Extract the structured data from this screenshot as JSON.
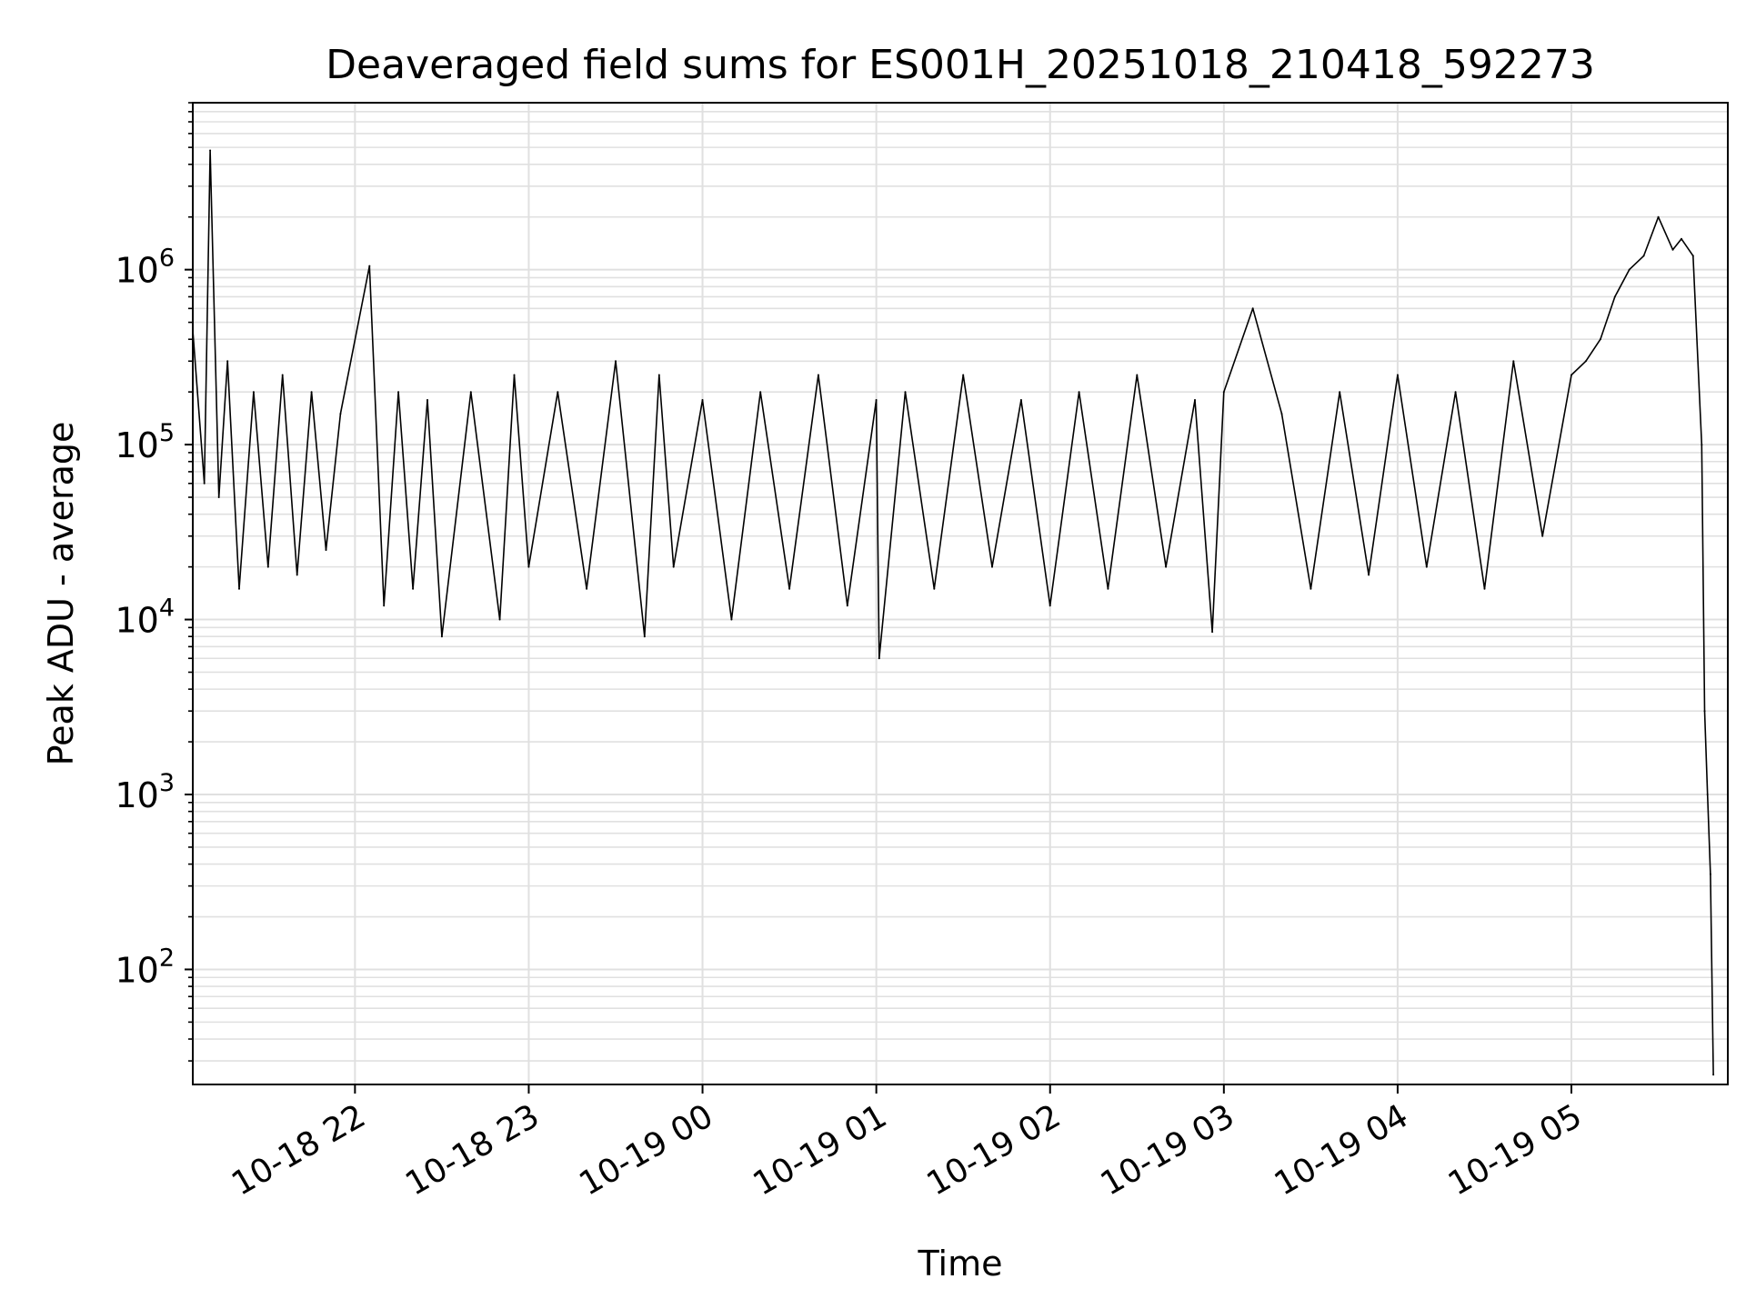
{
  "chart_data": {
    "type": "line",
    "title": "Deaveraged field sums for ES001H_20251018_210418_592273",
    "xlabel": "Time",
    "ylabel": "Peak ADU - average",
    "yscale": "log",
    "ylim": [
      22,
      9000000
    ],
    "xlim": [
      "2025-10-18 21:04",
      "2025-10-19 05:54"
    ],
    "grid": true,
    "x_ticks": [
      {
        "t": "2025-10-18 22:00",
        "label": "10-18 22"
      },
      {
        "t": "2025-10-18 23:00",
        "label": "10-18 23"
      },
      {
        "t": "2025-10-19 00:00",
        "label": "10-19 00"
      },
      {
        "t": "2025-10-19 01:00",
        "label": "10-19 01"
      },
      {
        "t": "2025-10-19 02:00",
        "label": "10-19 02"
      },
      {
        "t": "2025-10-19 03:00",
        "label": "10-19 03"
      },
      {
        "t": "2025-10-19 04:00",
        "label": "10-19 04"
      },
      {
        "t": "2025-10-19 05:00",
        "label": "10-19 05"
      }
    ],
    "y_ticks": [
      {
        "value": 100,
        "base": "10",
        "exp": "2"
      },
      {
        "value": 1000,
        "base": "10",
        "exp": "3"
      },
      {
        "value": 10000,
        "base": "10",
        "exp": "4"
      },
      {
        "value": 100000,
        "base": "10",
        "exp": "5"
      },
      {
        "value": 1000000,
        "base": "10",
        "exp": "6"
      }
    ],
    "line_color": "#000000",
    "grid_color": "#e0e0e0",
    "series": [
      {
        "x": [
          "2025-10-18 21:04",
          "2025-10-18 21:08",
          "2025-10-18 21:10",
          "2025-10-18 21:13",
          "2025-10-18 21:16",
          "2025-10-18 21:20",
          "2025-10-18 21:25",
          "2025-10-18 21:30",
          "2025-10-18 21:35",
          "2025-10-18 21:40",
          "2025-10-18 21:45",
          "2025-10-18 21:50",
          "2025-10-18 21:55",
          "2025-10-18 22:05",
          "2025-10-18 22:10",
          "2025-10-18 22:15",
          "2025-10-18 22:20",
          "2025-10-18 22:25",
          "2025-10-18 22:30",
          "2025-10-18 22:40",
          "2025-10-18 22:50",
          "2025-10-18 22:55",
          "2025-10-18 23:00",
          "2025-10-18 23:10",
          "2025-10-18 23:20",
          "2025-10-18 23:30",
          "2025-10-18 23:40",
          "2025-10-18 23:45",
          "2025-10-18 23:50",
          "2025-10-19 00:00",
          "2025-10-19 00:10",
          "2025-10-19 00:20",
          "2025-10-19 00:30",
          "2025-10-19 00:40",
          "2025-10-19 00:50",
          "2025-10-19 01:00",
          "2025-10-19 01:01",
          "2025-10-19 01:10",
          "2025-10-19 01:20",
          "2025-10-19 01:30",
          "2025-10-19 01:40",
          "2025-10-19 01:50",
          "2025-10-19 02:00",
          "2025-10-19 02:10",
          "2025-10-19 02:20",
          "2025-10-19 02:30",
          "2025-10-19 02:40",
          "2025-10-19 02:50",
          "2025-10-19 02:56",
          "2025-10-19 03:00",
          "2025-10-19 03:10",
          "2025-10-19 03:20",
          "2025-10-19 03:30",
          "2025-10-19 03:40",
          "2025-10-19 03:50",
          "2025-10-19 04:00",
          "2025-10-19 04:10",
          "2025-10-19 04:20",
          "2025-10-19 04:30",
          "2025-10-19 04:40",
          "2025-10-19 04:50",
          "2025-10-19 05:00",
          "2025-10-19 05:05",
          "2025-10-19 05:10",
          "2025-10-19 05:15",
          "2025-10-19 05:20",
          "2025-10-19 05:25",
          "2025-10-19 05:30",
          "2025-10-19 05:35",
          "2025-10-19 05:38",
          "2025-10-19 05:42",
          "2025-10-19 05:45",
          "2025-10-19 05:46",
          "2025-10-19 05:47",
          "2025-10-19 05:48",
          "2025-10-19 05:49"
        ],
        "y": [
          450000,
          60000,
          4800000,
          50000,
          300000,
          15000,
          200000,
          20000,
          250000,
          18000,
          200000,
          25000,
          150000,
          1050000,
          12000,
          200000,
          15000,
          180000,
          8000,
          200000,
          10000,
          250000,
          20000,
          200000,
          15000,
          300000,
          8000,
          250000,
          20000,
          180000,
          10000,
          200000,
          15000,
          250000,
          12000,
          180000,
          6000,
          200000,
          15000,
          250000,
          20000,
          180000,
          12000,
          200000,
          15000,
          250000,
          20000,
          180000,
          8500,
          200000,
          600000,
          150000,
          15000,
          200000,
          18000,
          250000,
          20000,
          200000,
          15000,
          300000,
          30000,
          250000,
          300000,
          400000,
          700000,
          1000000,
          1200000,
          2000000,
          1300000,
          1500000,
          1200000,
          100000,
          3000,
          1000,
          350,
          25
        ]
      }
    ]
  }
}
